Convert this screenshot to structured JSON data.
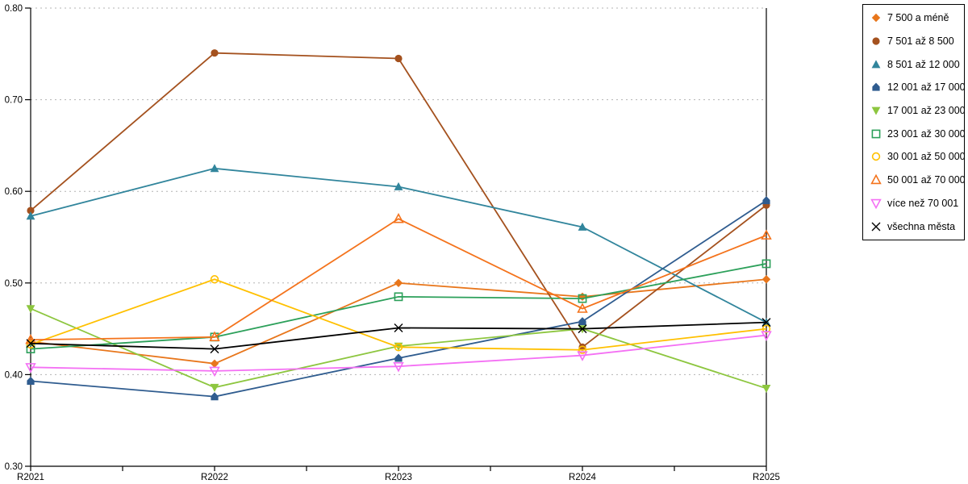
{
  "chart_data": {
    "type": "line",
    "title": "",
    "xlabel": "",
    "ylabel": "",
    "categories": [
      "R2021",
      "R2022",
      "R2023",
      "R2024",
      "R2025"
    ],
    "series": [
      {
        "name": "7 500 a méně",
        "marker": "diamond",
        "color": "#E8761B",
        "values": [
          0.436,
          0.412,
          0.5,
          0.485,
          0.504
        ]
      },
      {
        "name": "7 501 až 8 500",
        "marker": "circle",
        "color": "#A4511E",
        "values": [
          0.579,
          0.751,
          0.745,
          0.43,
          0.585
        ]
      },
      {
        "name": "8 501 až 12 000",
        "marker": "triangle-up",
        "color": "#31859C",
        "values": [
          0.573,
          0.625,
          0.605,
          0.561,
          0.457
        ]
      },
      {
        "name": "12 001 až 17 000",
        "marker": "house",
        "color": "#2F5C8F",
        "values": [
          0.393,
          0.376,
          0.418,
          0.458,
          0.59
        ]
      },
      {
        "name": "17 001 až 23 000",
        "marker": "triangle-down",
        "color": "#8DC63F",
        "values": [
          0.472,
          0.386,
          0.431,
          0.45,
          0.385
        ]
      },
      {
        "name": "23 001 až 30 000",
        "marker": "square-open",
        "color": "#2CA05A",
        "values": [
          0.428,
          0.441,
          0.485,
          0.483,
          0.521
        ]
      },
      {
        "name": "30 001 až 50 000",
        "marker": "circle-open",
        "color": "#FFC000",
        "values": [
          0.433,
          0.504,
          0.43,
          0.427,
          0.45
        ]
      },
      {
        "name": "50 001 až 70 000",
        "marker": "triangle-open",
        "color": "#F4731C",
        "values": [
          0.438,
          0.441,
          0.57,
          0.472,
          0.552
        ]
      },
      {
        "name": "více než 70 001",
        "marker": "triangle-down-open",
        "color": "#F470F4",
        "values": [
          0.408,
          0.404,
          0.409,
          0.421,
          0.443
        ]
      },
      {
        "name": "všechna města",
        "marker": "x",
        "color": "#000000",
        "values": [
          0.434,
          0.428,
          0.451,
          0.45,
          0.457
        ]
      }
    ],
    "ylim": [
      0.3,
      0.8
    ],
    "ytick_step": 0.1,
    "ytick_labels": [
      "0.30",
      "0.40",
      "0.50",
      "0.60",
      "0.70",
      "0.80"
    ],
    "grid": "horizontal-dashed",
    "gridline_color": "#b3b3b3",
    "axis_color": "#000000",
    "legend_position": "top-right"
  }
}
